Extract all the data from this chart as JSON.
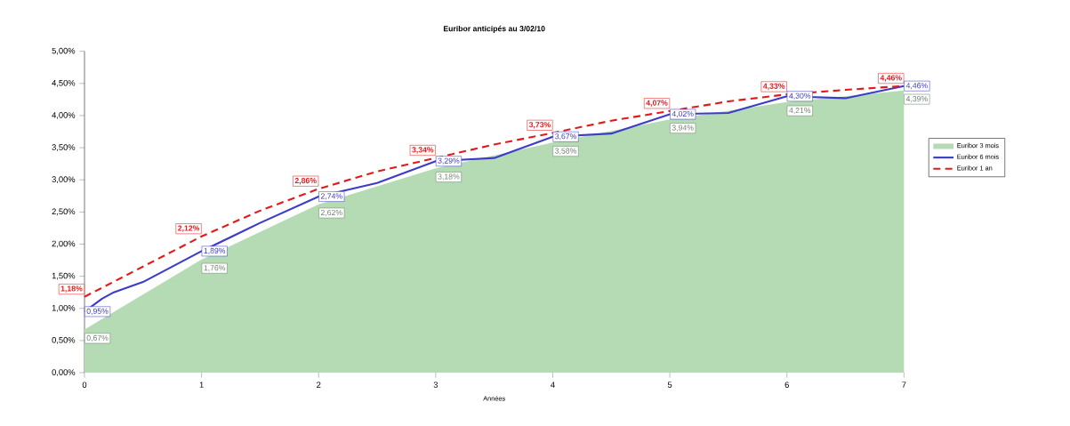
{
  "chart_data": {
    "type": "line",
    "title": "Euribor anticipés au 3/02/10",
    "xlabel": "Années",
    "xlim": [
      0,
      7
    ],
    "xticks": [
      0,
      1,
      2,
      3,
      4,
      5,
      6,
      7
    ],
    "ylim": [
      0,
      5
    ],
    "yticks": [
      {
        "value": 0,
        "label": "0,00%"
      },
      {
        "value": 0.5,
        "label": "0,50%"
      },
      {
        "value": 1,
        "label": "1,00%"
      },
      {
        "value": 1.5,
        "label": "1,50%"
      },
      {
        "value": 2,
        "label": "2,00%"
      },
      {
        "value": 2.5,
        "label": "2,50%"
      },
      {
        "value": 3,
        "label": "3,00%"
      },
      {
        "value": 3.5,
        "label": "3,50%"
      },
      {
        "value": 4,
        "label": "4,00%"
      },
      {
        "value": 4.5,
        "label": "4,50%"
      },
      {
        "value": 5,
        "label": "5,00%"
      }
    ],
    "legend": "right",
    "marker": "none",
    "series": [
      {
        "name": "Euribor 3 mois",
        "type": "area",
        "color": "#b5dbb5",
        "x": [
          0,
          1,
          2,
          3,
          4,
          5,
          6,
          7
        ],
        "values": [
          0.67,
          1.76,
          2.62,
          3.18,
          3.58,
          3.94,
          4.21,
          4.39
        ],
        "value_labels": [
          "0,67%",
          "1,76%",
          "2,62%",
          "3,18%",
          "3,58%",
          "3,94%",
          "4,21%",
          "4,39%"
        ]
      },
      {
        "name": "Euribor 6 mois",
        "line_style": "solid",
        "color": "#3c3cc8",
        "x": [
          0,
          0.15,
          0.25,
          0.5,
          1,
          1.5,
          2,
          2.5,
          3,
          3.5,
          4,
          4.5,
          5,
          5.5,
          6,
          6.5,
          7
        ],
        "values": [
          0.95,
          1.15,
          1.25,
          1.41,
          1.89,
          2.33,
          2.74,
          2.95,
          3.29,
          3.34,
          3.67,
          3.72,
          4.02,
          4.04,
          4.3,
          4.27,
          4.46
        ],
        "value_labels": [
          "0,95%",
          null,
          null,
          null,
          "1,89%",
          null,
          "2,74%",
          null,
          "3,29%",
          null,
          "3,67%",
          null,
          "4,02%",
          null,
          "4,30%",
          null,
          "4,46%"
        ]
      },
      {
        "name": "Euribor 1 an",
        "line_style": "dashed",
        "color": "#e41a1a",
        "x": [
          0,
          0.5,
          1,
          1.5,
          2,
          2.5,
          3,
          3.5,
          4,
          4.5,
          5,
          5.5,
          6,
          6.5,
          7
        ],
        "values": [
          1.18,
          1.65,
          2.12,
          2.52,
          2.86,
          3.13,
          3.34,
          3.55,
          3.73,
          3.92,
          4.07,
          4.22,
          4.33,
          4.4,
          4.46
        ],
        "value_labels": [
          "1,18%",
          null,
          "2,12%",
          null,
          "2,86%",
          null,
          "3,34%",
          null,
          "3,73%",
          null,
          "4,07%",
          null,
          "4,33%",
          null,
          "4,46%"
        ]
      }
    ]
  }
}
